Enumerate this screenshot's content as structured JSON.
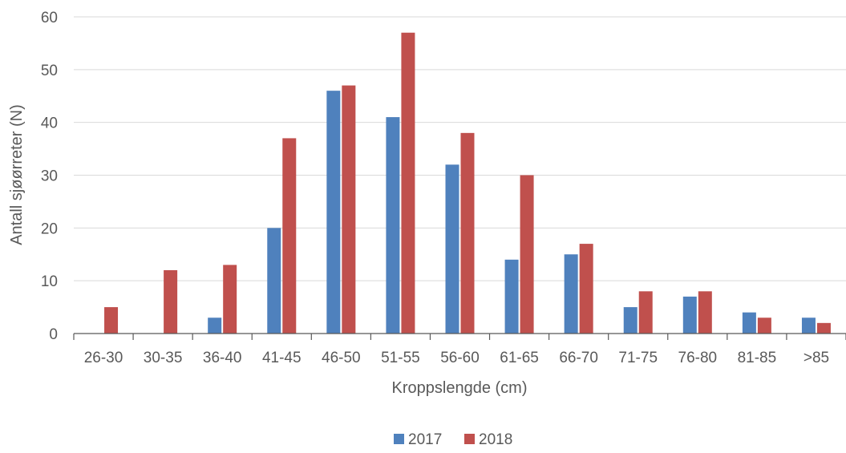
{
  "chart_data": {
    "type": "bar",
    "xlabel": "Kroppslengde (cm)",
    "ylabel": "Antall sjøørreter (N)",
    "categories": [
      "26-30",
      "30-35",
      "36-40",
      "41-45",
      "46-50",
      "51-55",
      "56-60",
      "61-65",
      "66-70",
      "71-75",
      "76-80",
      "81-85",
      ">85"
    ],
    "series": [
      {
        "name": "2017",
        "color": "#4F81BD",
        "values": [
          0,
          0,
          3,
          20,
          46,
          41,
          32,
          14,
          15,
          5,
          7,
          4,
          3
        ]
      },
      {
        "name": "2018",
        "color": "#C0504D",
        "values": [
          5,
          12,
          13,
          37,
          47,
          57,
          38,
          30,
          17,
          8,
          8,
          3,
          2
        ]
      }
    ],
    "ylim": [
      0,
      60
    ],
    "yticks": [
      0,
      10,
      20,
      30,
      40,
      50,
      60
    ],
    "grid": true,
    "legend": "bottom-center"
  }
}
